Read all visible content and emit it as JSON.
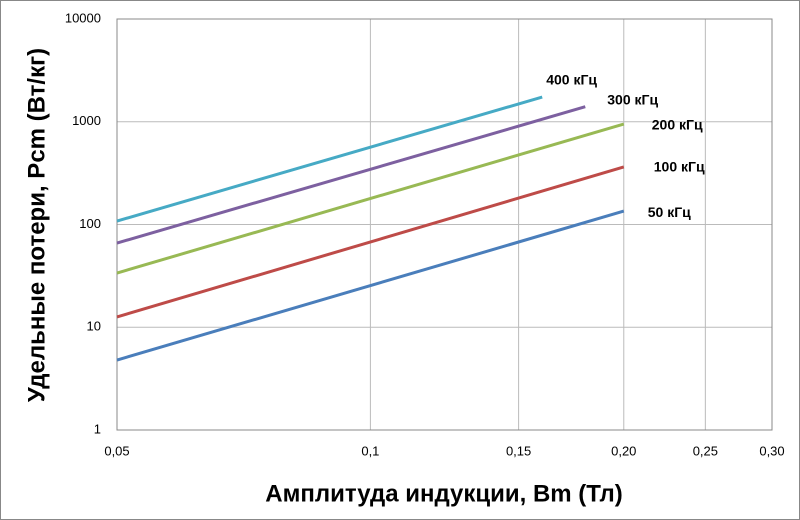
{
  "chart_data": {
    "type": "line",
    "x_label": "Амплитуда индукции, Bm (Тл)",
    "y_label": "Удельные  потери, Pcm (Вт/кг)",
    "xlog": true,
    "ylog": true,
    "grid": true,
    "xlim": [
      0.05,
      0.3
    ],
    "ylim": [
      1,
      10000
    ],
    "xticks": [
      {
        "value": 0.05,
        "label": "0,05"
      },
      {
        "value": 0.1,
        "label": "0,1"
      },
      {
        "value": 0.15,
        "label": "0,15"
      },
      {
        "value": 0.2,
        "label": "0,20"
      },
      {
        "value": 0.25,
        "label": "0,25"
      },
      {
        "value": 0.3,
        "label": "0,30"
      }
    ],
    "yticks": [
      1,
      10,
      100,
      1000,
      10000
    ],
    "series": [
      {
        "name": "50 кГц",
        "color": "#4a7ebb",
        "x": [
          0.05,
          0.2
        ],
        "values": [
          4.8,
          135
        ]
      },
      {
        "name": "100 кГц",
        "color": "#be4b48",
        "x": [
          0.05,
          0.2
        ],
        "values": [
          12.6,
          363
        ]
      },
      {
        "name": "200 кГц",
        "color": "#98b954",
        "x": [
          0.05,
          0.2
        ],
        "values": [
          33.7,
          950
        ]
      },
      {
        "name": "300 кГц",
        "color": "#7d60a0",
        "x": [
          0.05,
          0.18
        ],
        "values": [
          66,
          1400
        ]
      },
      {
        "name": "400 кГц",
        "color": "#46aac5",
        "x": [
          0.05,
          0.16
        ],
        "values": [
          108,
          1740
        ]
      }
    ]
  }
}
